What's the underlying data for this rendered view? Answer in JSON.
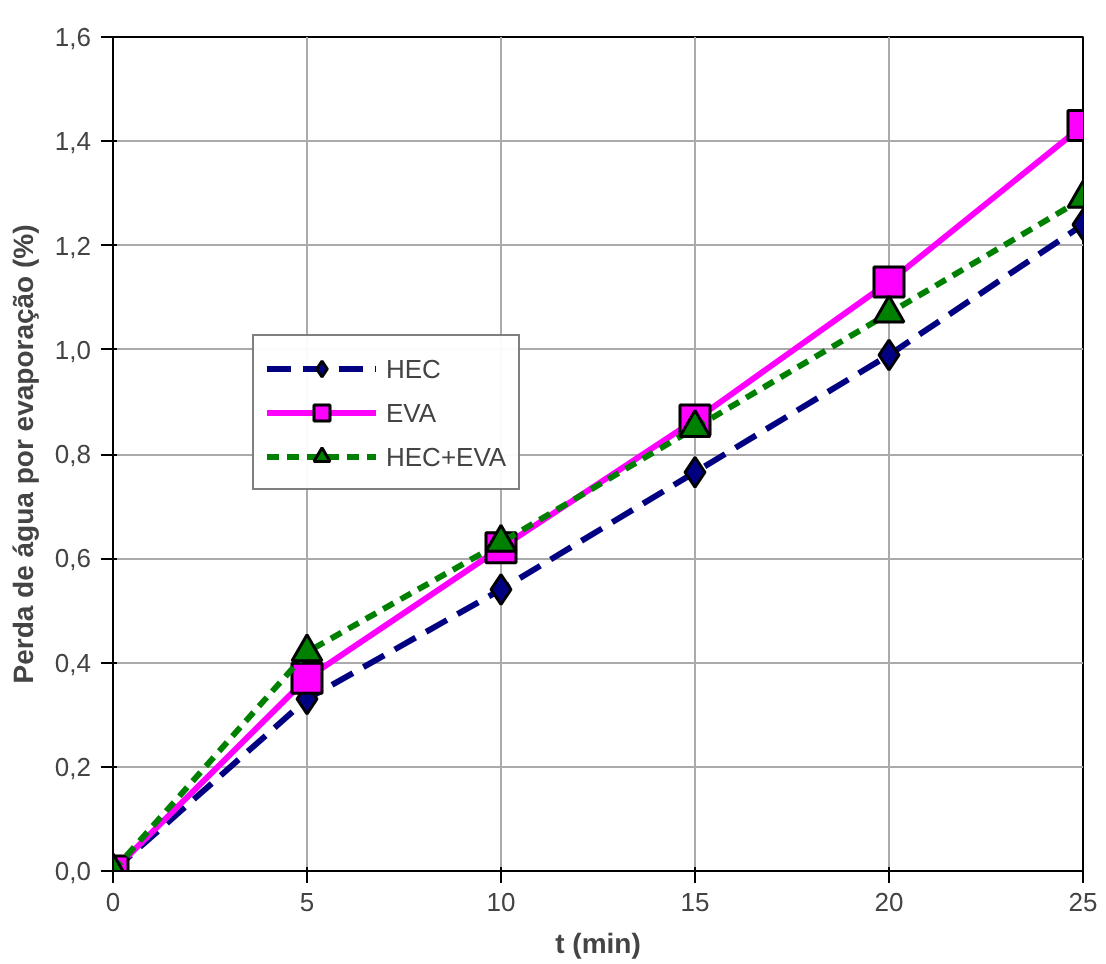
{
  "chart_data": {
    "type": "line",
    "xlabel": "t (min)",
    "ylabel": "Perda de água por evaporação (%)",
    "x": [
      0,
      5,
      10,
      15,
      20,
      25
    ],
    "xlim": [
      0,
      25
    ],
    "xticks": [
      0,
      5,
      10,
      15,
      20,
      25
    ],
    "ylim": [
      0,
      1.6
    ],
    "yticks": [
      {
        "value": 0,
        "label": "0,0"
      },
      {
        "value": 0.2,
        "label": "0,2"
      },
      {
        "value": 0.4,
        "label": "0,4"
      },
      {
        "value": 0.6,
        "label": "0,6"
      },
      {
        "value": 0.8,
        "label": "0,8"
      },
      {
        "value": 1.0,
        "label": "1,0"
      },
      {
        "value": 1.2,
        "label": "1,2"
      },
      {
        "value": 1.4,
        "label": "1,4"
      },
      {
        "value": 1.6,
        "label": "1,6"
      }
    ],
    "grid": true,
    "legend": "left",
    "series": [
      {
        "name": "HEC",
        "color": "#000080",
        "marker": "diamond",
        "line_style": "dashed",
        "values": [
          0,
          0.33,
          0.54,
          0.765,
          0.99,
          1.24
        ]
      },
      {
        "name": "EVA",
        "color": "#ff00ff",
        "marker": "square",
        "line_style": "solid",
        "values": [
          0,
          0.37,
          0.62,
          0.865,
          1.13,
          1.43
        ]
      },
      {
        "name": "HEC+EVA",
        "color": "#008000",
        "marker": "triangle",
        "line_style": "dotted",
        "values": [
          0,
          0.42,
          0.63,
          0.85,
          1.07,
          1.29
        ]
      }
    ]
  }
}
